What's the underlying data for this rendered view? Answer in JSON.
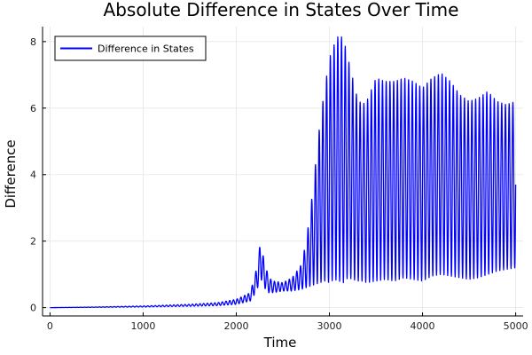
{
  "chart_data": {
    "type": "line",
    "title": "Absolute Difference in States Over Time",
    "xlabel": "Time",
    "ylabel": "Difference",
    "xlim": [
      -80,
      5080
    ],
    "ylim": [
      -0.25,
      8.45
    ],
    "x_ticks": [
      0,
      1000,
      2000,
      3000,
      4000,
      5000
    ],
    "y_ticks": [
      0,
      2,
      4,
      6,
      8
    ],
    "x_tick_labels": [
      "0",
      "1000",
      "2000",
      "3000",
      "4000",
      "5000"
    ],
    "y_tick_labels": [
      "0",
      "2",
      "4",
      "6",
      "8"
    ],
    "grid": true,
    "legend_position": "top-left",
    "series": [
      {
        "name": "Difference in States",
        "color": "#0000ff",
        "oscillation_period": 40,
        "x": [
          0,
          500,
          1000,
          1500,
          1800,
          2000,
          2150,
          2220,
          2260,
          2300,
          2350,
          2400,
          2500,
          2600,
          2700,
          2750,
          2800,
          2850,
          2900,
          2950,
          3000,
          3050,
          3100,
          3150,
          3200,
          3250,
          3300,
          3350,
          3400,
          3500,
          3600,
          3700,
          3800,
          3900,
          4000,
          4100,
          4200,
          4300,
          4400,
          4500,
          4600,
          4700,
          4800,
          4900,
          5000
        ],
        "upper": [
          0.0,
          0.02,
          0.05,
          0.1,
          0.15,
          0.25,
          0.45,
          1.2,
          2.0,
          1.4,
          0.9,
          0.8,
          0.75,
          0.9,
          1.3,
          2.0,
          3.0,
          4.3,
          5.6,
          6.6,
          7.5,
          7.9,
          8.2,
          8.1,
          7.5,
          6.9,
          6.3,
          6.1,
          6.2,
          6.9,
          6.8,
          6.8,
          6.9,
          6.8,
          6.6,
          6.9,
          7.05,
          6.8,
          6.4,
          6.2,
          6.3,
          6.5,
          6.2,
          6.1,
          6.2
        ],
        "lower": [
          0.0,
          0.01,
          0.02,
          0.04,
          0.06,
          0.1,
          0.2,
          0.5,
          0.9,
          0.6,
          0.45,
          0.45,
          0.5,
          0.5,
          0.55,
          0.6,
          0.65,
          0.7,
          0.75,
          0.8,
          0.75,
          0.85,
          0.8,
          0.75,
          0.9,
          0.85,
          0.8,
          0.8,
          0.75,
          0.8,
          0.85,
          0.8,
          0.9,
          0.85,
          0.8,
          0.95,
          1.0,
          0.95,
          0.9,
          0.85,
          0.9,
          1.0,
          1.1,
          1.15,
          1.2
        ]
      }
    ]
  }
}
